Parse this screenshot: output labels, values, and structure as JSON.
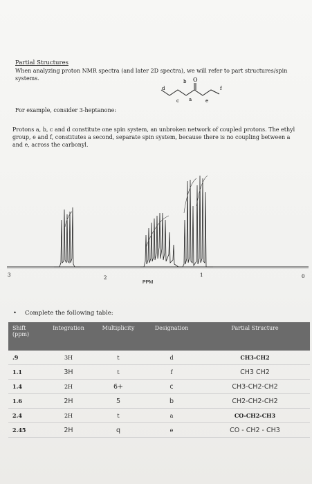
{
  "heading": "Partial Structures",
  "intro_line1": "When analyzing proton NMR spectra (and later 2D spectra), we will refer to part structures/spin",
  "intro_line2": "systems.",
  "example": "For example, consider 3-heptanone:",
  "molecule_labels": {
    "d": "d",
    "b": "b",
    "o": "O",
    "c": "c",
    "a": "a",
    "e": "e",
    "f": "f"
  },
  "paragraph": "Protons a, b, c and d constitute one spin system, an unbroken network of coupled protons. The ethyl group, e and f, constitutes a second, separate spin system, because there is no coupling between a and e, across the carbonyl.",
  "spectrum": {
    "axis_ticks": [
      "3",
      "2",
      "1",
      "0"
    ],
    "axis_label": "PPM"
  },
  "task": "Complete the following table:",
  "table": {
    "headers": [
      "Shift (ppm)",
      "Integration",
      "Multiplicity",
      "Designation",
      "Partial Structure"
    ],
    "rows": [
      {
        "shift": ".9",
        "integration": "3H",
        "multiplicity": "t",
        "designation": "d",
        "structure": "CH3-CH2",
        "handwritten": false
      },
      {
        "shift": "1.1",
        "integration": "3H",
        "multiplicity": "t",
        "designation": "f",
        "structure": "CH3 CH2",
        "handwritten": true
      },
      {
        "shift": "1.4",
        "integration": "2H",
        "multiplicity": "6+",
        "designation": "c",
        "structure": "CH3-CH2-CH2",
        "handwritten": true
      },
      {
        "shift": "1.6",
        "integration": "2H",
        "multiplicity": "5",
        "designation": "b",
        "structure": "CH2-CH2-CH2",
        "handwritten": true
      },
      {
        "shift": "2.4",
        "integration": "2H",
        "multiplicity": "t",
        "designation": "a",
        "structure": "CO-CH2-CH3",
        "handwritten": false
      },
      {
        "shift": "2.45",
        "integration": "2H",
        "multiplicity": "q",
        "designation": "e",
        "structure": "CO - CH2 - CH3",
        "handwritten": true
      }
    ]
  }
}
